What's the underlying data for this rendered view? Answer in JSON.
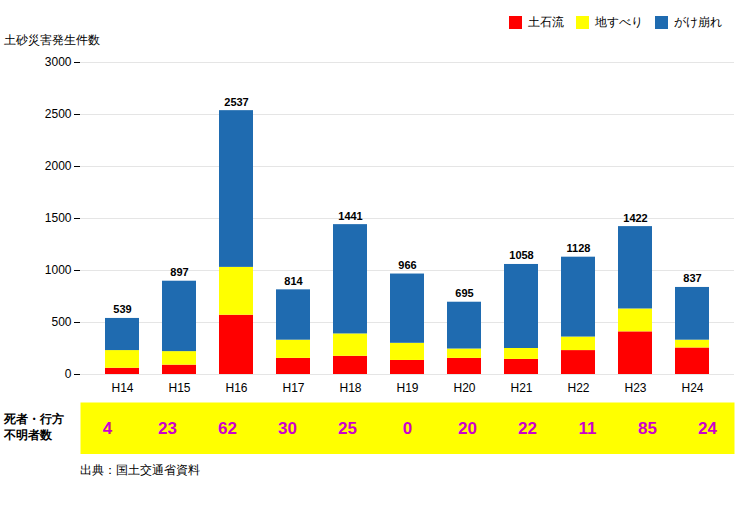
{
  "chart_data": {
    "type": "bar",
    "stacked": true,
    "ylabel": "土砂災害発生件数",
    "categories": [
      "H14",
      "H15",
      "H16",
      "H17",
      "H18",
      "H19",
      "H20",
      "H21",
      "H22",
      "H23",
      "H24"
    ],
    "series": [
      {
        "name": "土石流",
        "color": "#FF0000",
        "values": [
          60,
          90,
          570,
          155,
          175,
          135,
          155,
          145,
          230,
          410,
          255
        ]
      },
      {
        "name": "地すべり",
        "color": "#FFFF00",
        "values": [
          170,
          130,
          460,
          175,
          215,
          165,
          90,
          105,
          130,
          220,
          75
        ]
      },
      {
        "name": "がけ崩れ",
        "color": "#1F6BB0",
        "values": [
          309,
          677,
          1507,
          484,
          1051,
          666,
          450,
          808,
          768,
          792,
          507
        ]
      }
    ],
    "totals": [
      539,
      897,
      2537,
      814,
      1441,
      966,
      695,
      1058,
      1128,
      1422,
      837
    ],
    "death_row": {
      "label_lines": [
        "死者・行方",
        "不明者数"
      ],
      "values": [
        4,
        23,
        62,
        30,
        25,
        0,
        20,
        22,
        11,
        85,
        24
      ],
      "color": "#CC00CC",
      "background": "#FFFF00"
    },
    "caption": "出典：国土交通省資料",
    "ylim": [
      0,
      3000
    ],
    "yticks": [
      0,
      500,
      1000,
      1500,
      2000,
      2500,
      3000
    ],
    "grid": true,
    "legend": "upper right"
  }
}
